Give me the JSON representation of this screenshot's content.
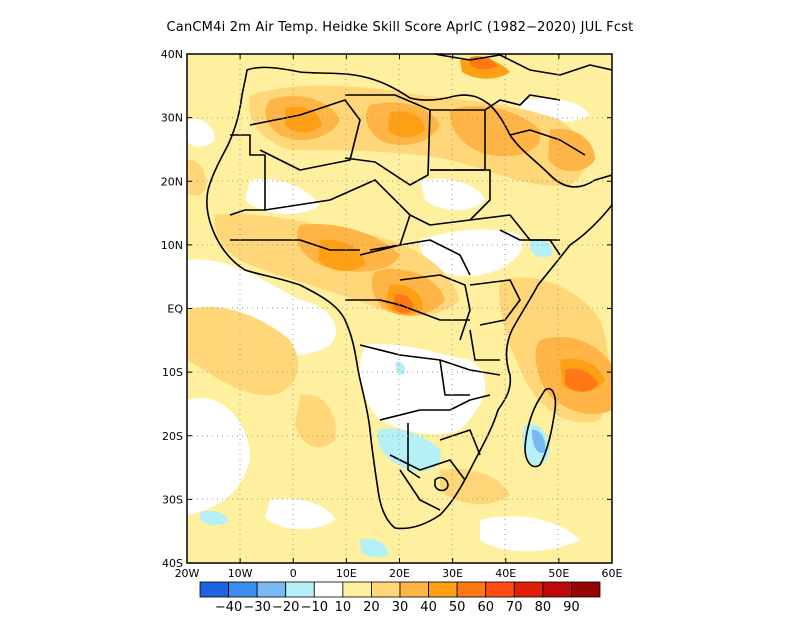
{
  "title": "CanCM4i  2m Air Temp. Heidke Skill Score AprIC (1982−2020) JUL Fcst",
  "map": {
    "lon_range": [
      -20,
      60
    ],
    "lat_range": [
      -40,
      40
    ],
    "x_ticks": [
      {
        "value": -20,
        "label": "20W"
      },
      {
        "value": -10,
        "label": "10W"
      },
      {
        "value": 0,
        "label": "0"
      },
      {
        "value": 10,
        "label": "10E"
      },
      {
        "value": 20,
        "label": "20E"
      },
      {
        "value": 30,
        "label": "30E"
      },
      {
        "value": 40,
        "label": "40E"
      },
      {
        "value": 50,
        "label": "50E"
      },
      {
        "value": 60,
        "label": "60E"
      }
    ],
    "y_ticks": [
      {
        "value": 40,
        "label": "40N"
      },
      {
        "value": 30,
        "label": "30N"
      },
      {
        "value": 20,
        "label": "20N"
      },
      {
        "value": 10,
        "label": "10N"
      },
      {
        "value": 0,
        "label": "EQ"
      },
      {
        "value": -10,
        "label": "10S"
      },
      {
        "value": -20,
        "label": "20S"
      },
      {
        "value": -30,
        "label": "30S"
      },
      {
        "value": -40,
        "label": "40S"
      }
    ],
    "grid": "dotted"
  },
  "colorbar": {
    "colors": [
      "#1e64e0",
      "#3c8cf0",
      "#78b9f5",
      "#b4f0f5",
      "#ffffff",
      "#fff0a0",
      "#ffd778",
      "#ffb446",
      "#ffa014",
      "#ff7814",
      "#ff4b14",
      "#e11e0a",
      "#be0a0a",
      "#960505"
    ],
    "labels": [
      "−40",
      "−30",
      "−20",
      "−10",
      "10",
      "20",
      "30",
      "40",
      "50",
      "60",
      "70",
      "80",
      "90"
    ]
  }
}
